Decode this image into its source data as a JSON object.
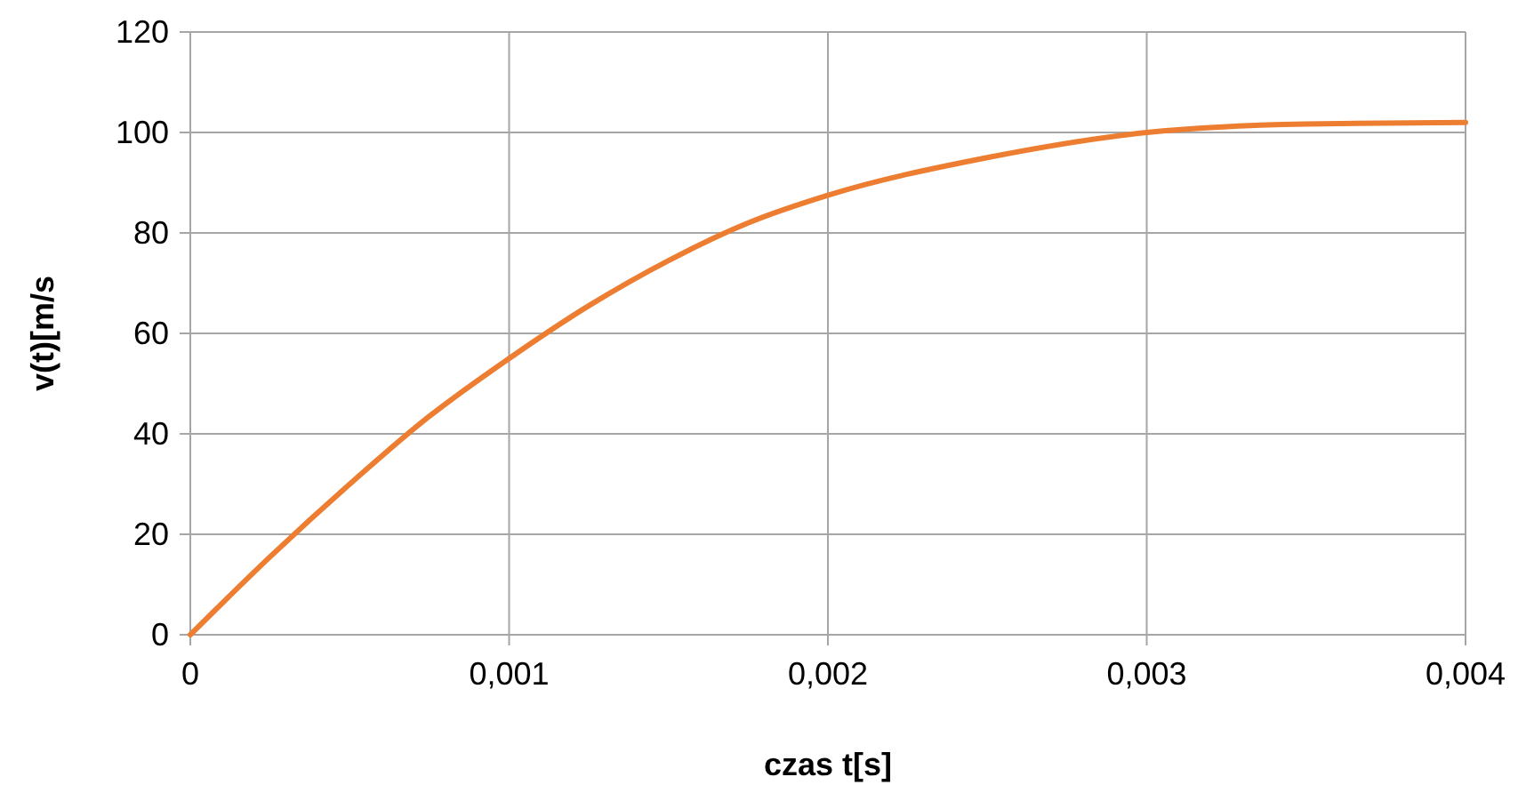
{
  "chart_data": {
    "type": "line",
    "xlabel": "czas t[s]",
    "ylabel": "v(t)[m/s",
    "x": [
      0,
      0.00025,
      0.0005,
      0.00075,
      0.001,
      0.00125,
      0.0015,
      0.00175,
      0.002,
      0.0025,
      0.003,
      0.0035,
      0.004
    ],
    "series": [
      {
        "color": "#ed7d31",
        "values": [
          0,
          15.5,
          30,
          43.5,
          55,
          65.5,
          74.5,
          82,
          87.5,
          95,
          100,
          101.7,
          102
        ]
      }
    ],
    "xlim": [
      0,
      0.004
    ],
    "xticks": [
      0,
      {
        "value": 0.001,
        "label": "0,001"
      },
      {
        "value": 0.002,
        "label": "0,002"
      },
      {
        "value": 0.003,
        "label": "0,003"
      },
      {
        "value": 0.004,
        "label": "0,004"
      }
    ],
    "ylim": [
      0,
      120
    ],
    "yticks": [
      0,
      20,
      40,
      60,
      80,
      100,
      120
    ],
    "grid": true,
    "marker": "none",
    "line_style": "solid"
  }
}
